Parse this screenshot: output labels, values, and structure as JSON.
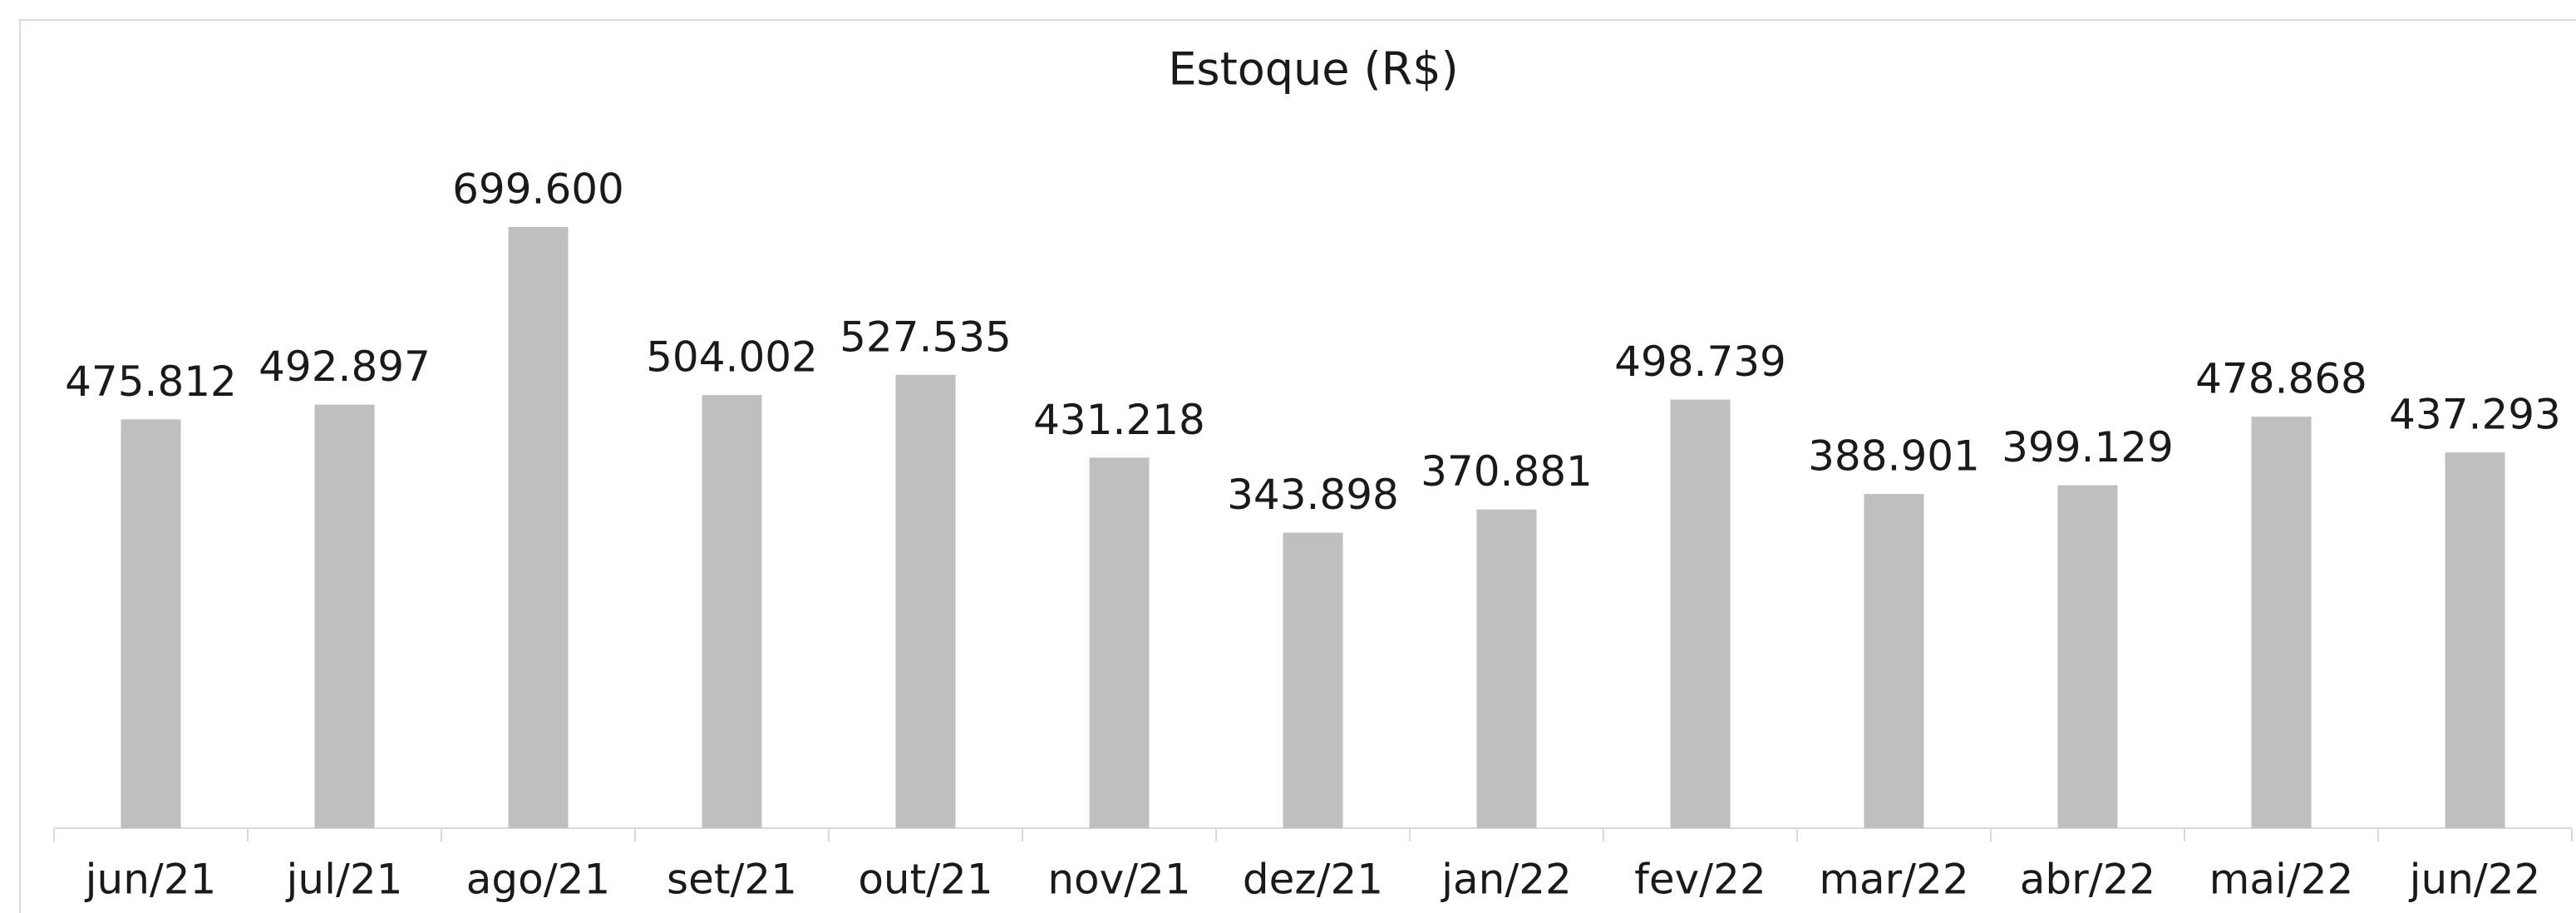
{
  "chart_data": {
    "type": "bar",
    "title": "Estoque (R$)",
    "categories": [
      "jun/21",
      "jul/21",
      "ago/21",
      "set/21",
      "out/21",
      "nov/21",
      "dez/21",
      "jan/22",
      "fev/22",
      "mar/22",
      "abr/22",
      "mai/22",
      "jun/22"
    ],
    "values": [
      475812,
      492897,
      699600,
      504002,
      527535,
      431218,
      343898,
      370881,
      498739,
      388901,
      399129,
      478868,
      437293
    ],
    "value_labels": [
      "475.812",
      "492.897",
      "699.600",
      "504.002",
      "527.535",
      "431.218",
      "343.898",
      "370.881",
      "498.739",
      "388.901",
      "399.129",
      "478.868",
      "437.293"
    ],
    "color": "#bfbfbf"
  }
}
